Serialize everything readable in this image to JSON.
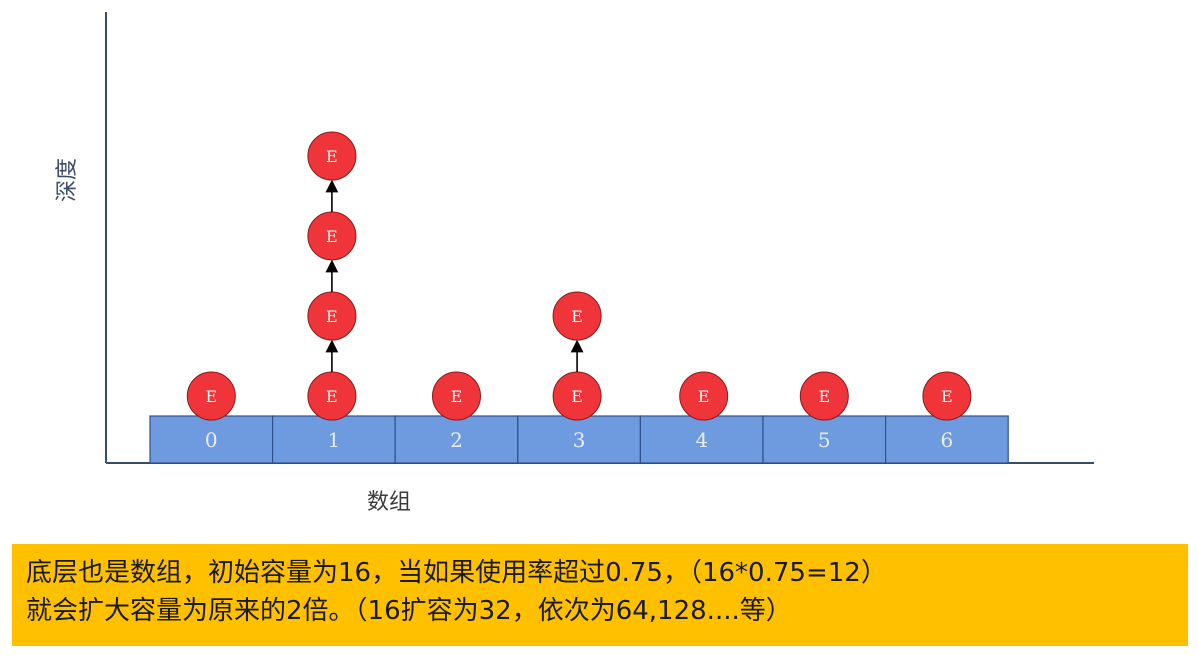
{
  "diagram": {
    "y_axis_label": "深度",
    "x_axis_label": "数组",
    "node_label": "E",
    "bucket_labels": [
      "0",
      "1",
      "2",
      "3",
      "4",
      "5",
      "6"
    ],
    "chains": [
      1,
      4,
      1,
      2,
      1,
      1,
      1
    ],
    "colors": {
      "bucket_fill": "#6e9be0",
      "bucket_stroke": "#2f4f8f",
      "node_fill": "#f0353a",
      "node_stroke": "#8a1a1a",
      "arrow": "#000000",
      "axis": "#3c4a6b"
    }
  },
  "caption": {
    "line1": "底层也是数组，初始容量为16，当如果使用率超过0.75，（16*0.75=12）",
    "line2": "就会扩大容量为原来的2倍。（16扩容为32，依次为64,128....等）",
    "background": "#ffc000"
  }
}
